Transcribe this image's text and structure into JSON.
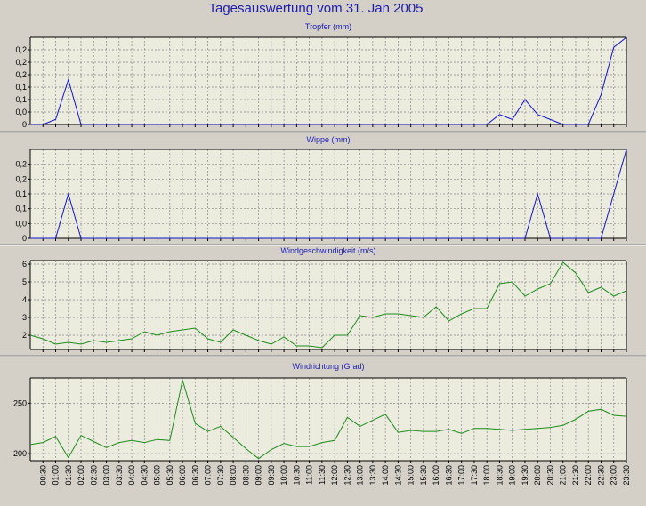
{
  "page_title": "Tagesauswertung vom 31. Jan 2005",
  "colors": {
    "background": "#d4d0c8",
    "plot_bg": "#ebebde",
    "title": "#1c1cb4",
    "blue_series": "#1414c8",
    "green_series": "#1e8c1e",
    "grid": "#888888"
  },
  "x_ticks": [
    "00:30",
    "01:00",
    "01:30",
    "02:00",
    "02:30",
    "03:00",
    "03:30",
    "04:00",
    "04:30",
    "05:00",
    "05:30",
    "06:00",
    "06:30",
    "07:00",
    "07:30",
    "08:00",
    "08:30",
    "09:00",
    "09:30",
    "10:00",
    "10:30",
    "11:00",
    "11:30",
    "12:00",
    "12:30",
    "13:00",
    "13:30",
    "14:00",
    "14:30",
    "15:00",
    "15:30",
    "16:00",
    "16:30",
    "17:00",
    "17:30",
    "18:00",
    "18:30",
    "19:00",
    "19:30",
    "20:00",
    "20:30",
    "21:00",
    "21:30",
    "22:00",
    "22:30",
    "23:00",
    "23:30"
  ],
  "chart_data": [
    {
      "type": "line",
      "title": "Tropfer (mm)",
      "ylim": [
        0,
        0.35
      ],
      "y_ticks": [
        0,
        0.05,
        0.1,
        0.15,
        0.2,
        0.25,
        0.3
      ],
      "y_tick_labels": [
        "0",
        "0,0",
        "0,1",
        "0,1",
        "0,2",
        "0,2",
        "0,2"
      ],
      "grid": true,
      "series": [
        {
          "color": "#1414c8",
          "x": [
            "00:00",
            "00:30",
            "01:00",
            "01:30",
            "02:00",
            "18:00",
            "18:30",
            "19:00",
            "19:30",
            "20:00",
            "20:30",
            "21:00",
            "21:30",
            "22:00",
            "22:30",
            "23:00",
            "23:30"
          ],
          "values": [
            0,
            0,
            0.02,
            0.18,
            0,
            0,
            0.04,
            0.02,
            0.1,
            0.04,
            0.02,
            0,
            0,
            0,
            0.12,
            0.31,
            0.35
          ]
        }
      ]
    },
    {
      "type": "line",
      "title": "Wippe (mm)",
      "ylim": [
        0,
        0.3
      ],
      "y_ticks": [
        0,
        0.05,
        0.1,
        0.15,
        0.2,
        0.25
      ],
      "y_tick_labels": [
        "0",
        "0,0",
        "0,1",
        "0,1",
        "0,2",
        "0,2"
      ],
      "grid": true,
      "series": [
        {
          "color": "#1414c8",
          "x": [
            "00:00",
            "00:30",
            "01:00",
            "01:30",
            "02:00",
            "19:00",
            "19:30",
            "20:00",
            "20:30",
            "21:00",
            "21:30",
            "22:00",
            "22:30",
            "23:00",
            "23:30"
          ],
          "values": [
            0,
            0,
            0,
            0.15,
            0,
            0,
            0,
            0.15,
            0,
            0,
            0,
            0,
            0,
            0.15,
            0.3
          ]
        }
      ]
    },
    {
      "type": "line",
      "title": "Windgeschwindigkeit (m/s)",
      "ylim": [
        1.2,
        6.2
      ],
      "y_ticks": [
        2,
        3,
        4,
        5,
        6
      ],
      "y_tick_labels": [
        "2",
        "3",
        "4",
        "5",
        "6"
      ],
      "grid": true,
      "series": [
        {
          "color": "#1e8c1e",
          "x": [
            "00:00",
            "00:30",
            "01:00",
            "01:30",
            "02:00",
            "02:30",
            "03:00",
            "03:30",
            "04:00",
            "04:30",
            "05:00",
            "05:30",
            "06:00",
            "06:30",
            "07:00",
            "07:30",
            "08:00",
            "08:30",
            "09:00",
            "09:30",
            "10:00",
            "10:30",
            "11:00",
            "11:30",
            "12:00",
            "12:30",
            "13:00",
            "13:30",
            "14:00",
            "14:30",
            "15:00",
            "15:30",
            "16:00",
            "16:30",
            "17:00",
            "17:30",
            "18:00",
            "18:30",
            "19:00",
            "19:30",
            "20:00",
            "20:30",
            "21:00",
            "21:30",
            "22:00",
            "22:30",
            "23:00",
            "23:30"
          ],
          "values": [
            2.0,
            1.8,
            1.5,
            1.6,
            1.5,
            1.7,
            1.6,
            1.7,
            1.8,
            2.2,
            2.0,
            2.2,
            2.3,
            2.4,
            1.8,
            1.6,
            2.3,
            2.0,
            1.7,
            1.5,
            1.9,
            1.4,
            1.4,
            1.3,
            2.0,
            2.0,
            3.1,
            3.0,
            3.2,
            3.2,
            3.1,
            3.0,
            3.6,
            2.8,
            3.2,
            3.5,
            3.5,
            4.9,
            5.0,
            4.2,
            4.6,
            4.9,
            6.1,
            5.5,
            4.4,
            4.7,
            4.2,
            4.5
          ]
        }
      ]
    },
    {
      "type": "line",
      "title": "Windrichtung (Grad)",
      "ylim": [
        193,
        275
      ],
      "y_ticks": [
        200,
        250
      ],
      "y_tick_labels": [
        "200",
        "250"
      ],
      "grid": true,
      "series": [
        {
          "color": "#1e8c1e",
          "x": [
            "00:00",
            "00:30",
            "01:00",
            "01:30",
            "02:00",
            "02:30",
            "03:00",
            "03:30",
            "04:00",
            "04:30",
            "05:00",
            "05:30",
            "06:00",
            "06:30",
            "07:00",
            "07:30",
            "08:00",
            "08:30",
            "09:00",
            "09:30",
            "10:00",
            "10:30",
            "11:00",
            "11:30",
            "12:00",
            "12:30",
            "13:00",
            "13:30",
            "14:00",
            "14:30",
            "15:00",
            "15:30",
            "16:00",
            "16:30",
            "17:00",
            "17:30",
            "18:00",
            "18:30",
            "19:00",
            "19:30",
            "20:00",
            "20:30",
            "21:00",
            "21:30",
            "22:00",
            "22:30",
            "23:00",
            "23:30"
          ],
          "values": [
            209,
            211,
            217,
            196,
            218,
            212,
            206,
            211,
            213,
            211,
            214,
            213,
            273,
            230,
            222,
            227,
            216,
            205,
            195,
            204,
            210,
            207,
            207,
            211,
            213,
            236,
            227,
            233,
            239,
            221,
            223,
            222,
            222,
            224,
            220,
            225,
            225,
            224,
            223,
            224,
            225,
            226,
            228,
            234,
            242,
            244,
            238,
            237
          ]
        }
      ]
    }
  ]
}
